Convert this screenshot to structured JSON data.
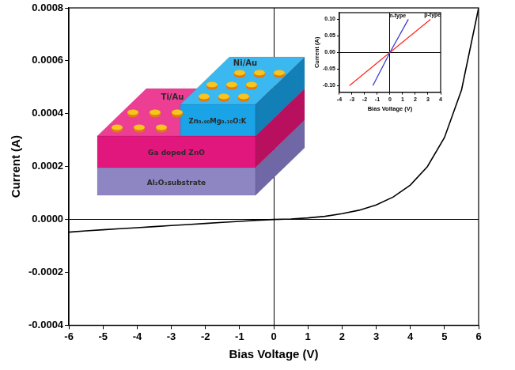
{
  "chart_data": [
    {
      "type": "line",
      "x_label": "Bias Voltage (V)",
      "y_label": "Current (A)",
      "x": [
        -6,
        -5.5,
        -5,
        -4.5,
        -4,
        -3.5,
        -3,
        -2.5,
        -2,
        -1.5,
        -1,
        -0.5,
        0,
        0.5,
        1,
        1.5,
        2,
        2.5,
        3,
        3.5,
        4,
        4.5,
        5,
        5.5,
        6
      ],
      "values": [
        -4.8e-05,
        -4.3e-05,
        -3.9e-05,
        -3.5e-05,
        -3.1e-05,
        -2.7e-05,
        -2.3e-05,
        -1.9e-05,
        -1.5e-05,
        -1.1e-05,
        -7e-06,
        -3e-06,
        0,
        2e-06,
        6e-06,
        1.2e-05,
        2.2e-05,
        3.5e-05,
        5.5e-05,
        8.5e-05,
        0.00013,
        0.0002,
        0.00031,
        0.00049,
        0.0008
      ],
      "color": "#000000",
      "xlim": [
        -6,
        6
      ],
      "xticks": [
        -6,
        -5,
        -4,
        -3,
        -2,
        -1,
        0,
        1,
        2,
        3,
        4,
        5,
        6
      ],
      "ylim": [
        -0.0004,
        0.0008
      ],
      "yticks": [
        {
          "value": -0.0004,
          "label": "-0.0004"
        },
        {
          "value": -0.0002,
          "label": "-0.0002"
        },
        {
          "value": 0,
          "label": "0.0000"
        },
        {
          "value": 0.0002,
          "label": "0.0002"
        },
        {
          "value": 0.0004,
          "label": "0.0004"
        },
        {
          "value": 0.0006,
          "label": "0.0006"
        },
        {
          "value": 0.0008,
          "label": "0.0008"
        }
      ],
      "grid": false
    },
    {
      "type": "line",
      "x_label": "Bias Voltage (V)",
      "y_label": "Current (A)",
      "series": [
        {
          "name": "n-type",
          "color": "#3b3bd0",
          "x": [
            -1.35,
            0,
            1.45
          ],
          "values": [
            -0.1,
            0,
            0.1
          ]
        },
        {
          "name": "p-type",
          "color": "#ff2b1c",
          "x": [
            -3.2,
            0,
            3.2
          ],
          "values": [
            -0.1,
            0,
            0.1
          ]
        }
      ],
      "xlim": [
        -4,
        4
      ],
      "xticks": [
        -4,
        -3,
        -2,
        -1,
        0,
        1,
        2,
        3,
        4
      ],
      "ylim": [
        -0.12,
        0.12
      ],
      "yticks": [
        {
          "value": -0.1,
          "label": "-0.10"
        },
        {
          "value": -0.05,
          "label": "-0.05"
        },
        {
          "value": 0,
          "label": "0.00"
        },
        {
          "value": 0.05,
          "label": "0.05"
        },
        {
          "value": 0.1,
          "label": "0.10"
        }
      ],
      "grid": false
    }
  ],
  "diagram": {
    "layers": [
      "Al₂O₃substrate",
      "Ga doped ZnO",
      "Zn₀.₉₀Mg₀.₁₀O:K"
    ],
    "contacts": [
      "Ti/Au",
      "Ni/Au"
    ]
  }
}
